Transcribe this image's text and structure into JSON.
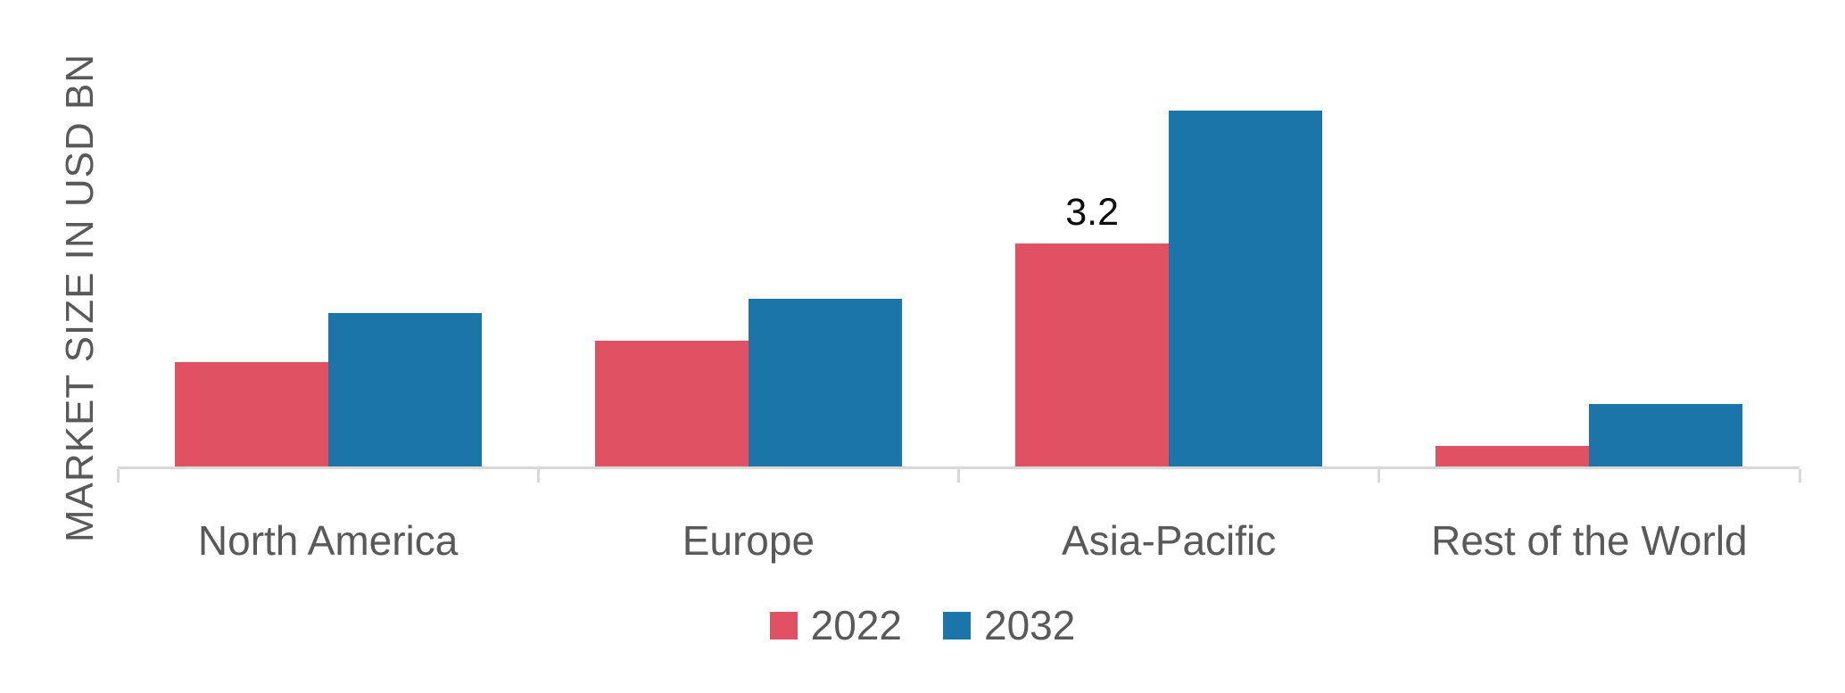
{
  "chart_data": {
    "type": "bar",
    "title": "",
    "xlabel": "",
    "ylabel": "MARKET SIZE IN USD BN",
    "categories": [
      "North America",
      "Europe",
      "Asia-Pacific",
      "Rest of the World"
    ],
    "series": [
      {
        "name": "2022",
        "color": "#E05263",
        "values": [
          1.5,
          1.8,
          3.2,
          0.3
        ]
      },
      {
        "name": "2032",
        "color": "#1C75A8",
        "values": [
          2.2,
          2.4,
          5.1,
          0.9
        ]
      }
    ],
    "data_labels": [
      {
        "series": "2022",
        "category": "Asia-Pacific",
        "text": "3.2"
      }
    ],
    "ylim": [
      0,
      5.5
    ],
    "grid": false,
    "legend_position": "bottom",
    "axis_color": "#D9D9D9",
    "text_color": "#595959",
    "data_label_color": "#0D0D0D"
  }
}
